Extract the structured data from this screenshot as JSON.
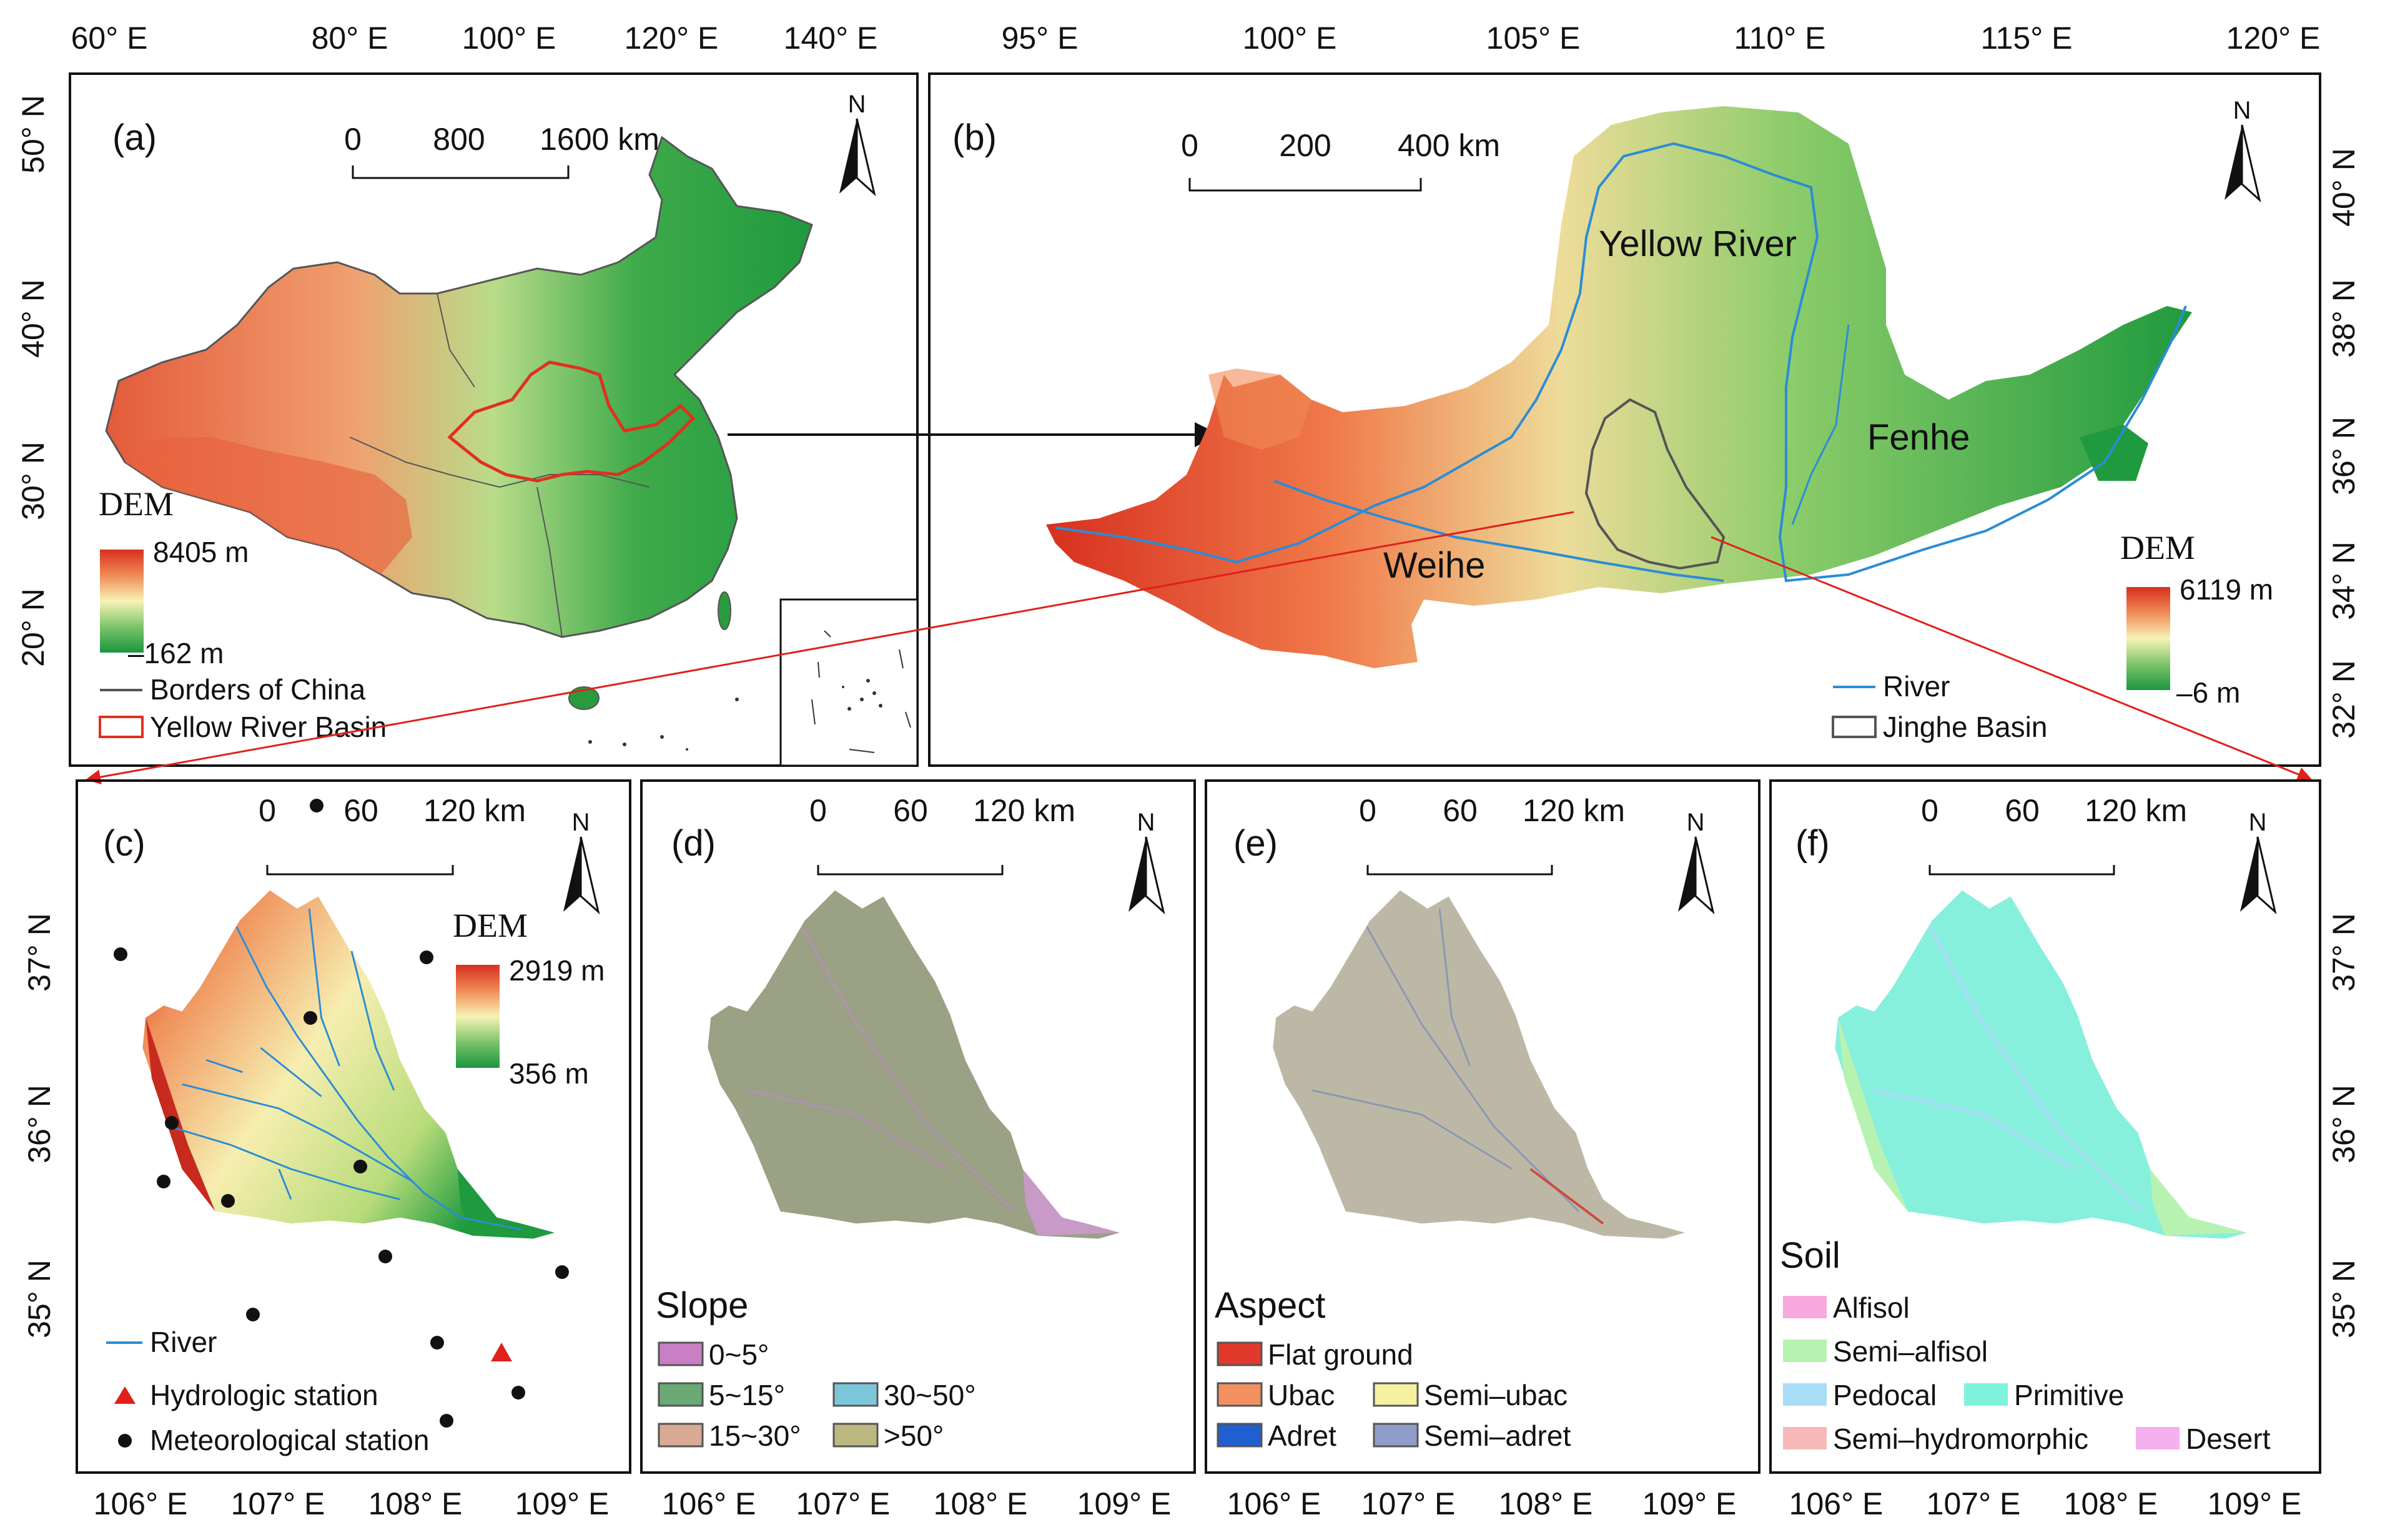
{
  "colors": {
    "dem_high": "#d7301f",
    "dem_mid": "#f7f3b6",
    "dem_low": "#1a9641",
    "river": "#2b8cd6",
    "yellow_river_basin": "#e0301e",
    "china_border": "#555555",
    "arrow_red": "#e0201a",
    "arrow_black": "#111111"
  },
  "panel_a": {
    "label": "(a)",
    "north": "N",
    "top_ticks": [
      "60° E",
      "80° E",
      "100° E",
      "120° E",
      "140° E"
    ],
    "left_ticks": [
      "50° N",
      "40° N",
      "30° N",
      "20° N"
    ],
    "scale": [
      "0",
      "800",
      "1600 km"
    ],
    "legend": {
      "title": "DEM",
      "max": "8405 m",
      "min": "–162 m",
      "items": [
        {
          "name": "china-border",
          "label": "Borders of China"
        },
        {
          "name": "yellow-river-basin",
          "label": "Yellow River Basin"
        }
      ]
    }
  },
  "panel_b": {
    "label": "(b)",
    "north": "N",
    "top_ticks": [
      "95° E",
      "100° E",
      "105° E",
      "110° E",
      "115° E",
      "120° E"
    ],
    "right_ticks": [
      "40° N",
      "38° N",
      "36° N",
      "34° N",
      "32° N"
    ],
    "scale": [
      "0",
      "200",
      "400 km"
    ],
    "places": {
      "yellow_river": "Yellow River",
      "fenhe": "Fenhe",
      "weihe": "Weihe"
    },
    "legend": {
      "title": "DEM",
      "max": "6119 m",
      "min": "–6 m",
      "items": [
        {
          "name": "river",
          "label": "River"
        },
        {
          "name": "jinghe-basin",
          "label": "Jinghe Basin"
        }
      ]
    }
  },
  "bottom_x_ticks": [
    "106° E",
    "107° E",
    "108° E",
    "109° E"
  ],
  "left_y_ticks_c": [
    "37° N",
    "36° N",
    "35° N"
  ],
  "right_y_ticks_f": [
    "37° N",
    "36° N",
    "35° N"
  ],
  "panel_c": {
    "label": "(c)",
    "north": "N",
    "scale": [
      "0",
      "60",
      "120 km"
    ],
    "legend": {
      "title": "DEM",
      "max": "2919 m",
      "min": "356 m",
      "items": [
        {
          "name": "river",
          "label": "River"
        },
        {
          "name": "hydrologic-station",
          "label": "Hydrologic station"
        },
        {
          "name": "meteorological-station",
          "label": "Meteorological station"
        }
      ]
    }
  },
  "panel_d": {
    "label": "(d)",
    "north": "N",
    "scale": [
      "0",
      "60",
      "120 km"
    ],
    "legend": {
      "title": "Slope",
      "items": [
        {
          "label": "0~5°",
          "color": "#c97fc4"
        },
        {
          "label": "5~15°",
          "color": "#6aa874"
        },
        {
          "label": "30~50°",
          "color": "#7cc6da"
        },
        {
          "label": "15~30°",
          "color": "#d8a995"
        },
        {
          "label": ">50°",
          "color": "#bdb880"
        }
      ]
    }
  },
  "panel_e": {
    "label": "(e)",
    "north": "N",
    "scale": [
      "0",
      "60",
      "120 km"
    ],
    "legend": {
      "title": "Aspect",
      "items": [
        {
          "label": "Flat ground",
          "color": "#e0392b"
        },
        {
          "label": "Ubac",
          "color": "#f29060"
        },
        {
          "label": "Semi–ubac",
          "color": "#f7f0a0"
        },
        {
          "label": "Adret",
          "color": "#1f5fd0"
        },
        {
          "label": "Semi–adret",
          "color": "#8f9ec8"
        }
      ]
    }
  },
  "panel_f": {
    "label": "(f)",
    "north": "N",
    "scale": [
      "0",
      "60",
      "120 km"
    ],
    "legend": {
      "title": "Soil",
      "items": [
        {
          "label": "Alfisol",
          "color": "#f7a8dc"
        },
        {
          "label": "Semi–alfisol",
          "color": "#b8f2b0"
        },
        {
          "label": "Pedocal",
          "color": "#a9dcf7"
        },
        {
          "label": "Primitive",
          "color": "#7ff2dc"
        },
        {
          "label": "Semi–hydromorphic",
          "color": "#f7b8b8"
        },
        {
          "label": "Desert",
          "color": "#f5b0f0"
        }
      ]
    }
  }
}
